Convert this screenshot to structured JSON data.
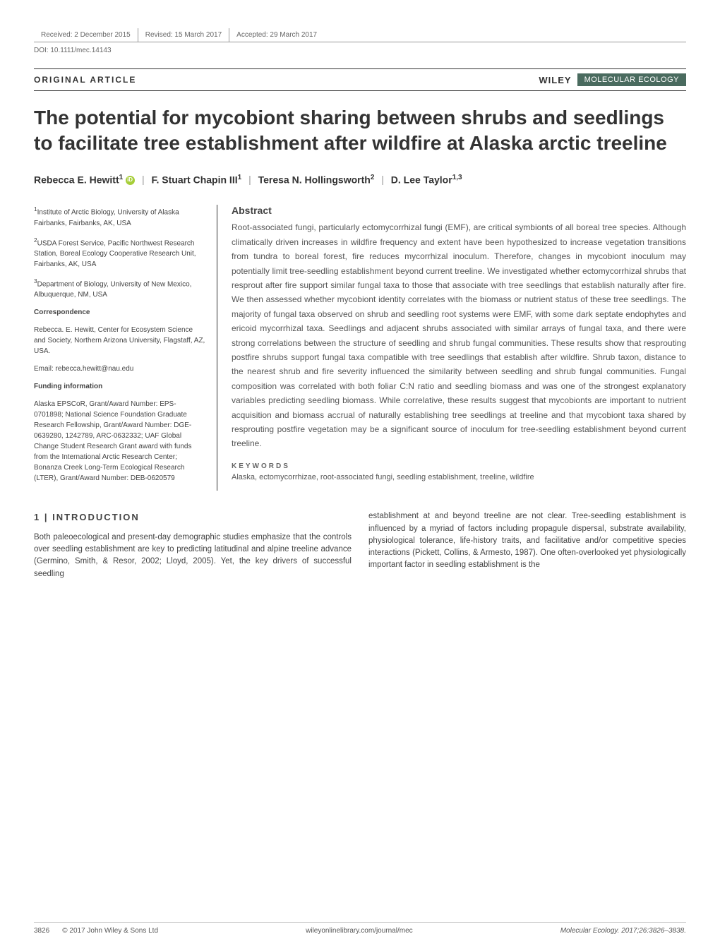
{
  "header": {
    "received": "Received: 2 December 2015",
    "revised": "Revised: 15 March 2017",
    "accepted": "Accepted: 29 March 2017",
    "doi": "DOI: 10.1111/mec.14143"
  },
  "articleType": "ORIGINAL ARTICLE",
  "publisher": "WILEY",
  "journalName": "MOLECULAR ECOLOGY",
  "title": "The potential for mycobiont sharing between shrubs and seedlings to facilitate tree establishment after wildfire at Alaska arctic treeline",
  "authors": {
    "a1": "Rebecca E. Hewitt",
    "a1_sup": "1",
    "a2": "F. Stuart Chapin III",
    "a2_sup": "1",
    "a3": "Teresa N. Hollingsworth",
    "a3_sup": "2",
    "a4": "D. Lee Taylor",
    "a4_sup": "1,3"
  },
  "affiliations": {
    "af1_sup": "1",
    "af1": "Institute of Arctic Biology, University of Alaska Fairbanks, Fairbanks, AK, USA",
    "af2_sup": "2",
    "af2": "USDA Forest Service, Pacific Northwest Research Station, Boreal Ecology Cooperative Research Unit, Fairbanks, AK, USA",
    "af3_sup": "3",
    "af3": "Department of Biology, University of New Mexico, Albuquerque, NM, USA"
  },
  "correspondence": {
    "head": "Correspondence",
    "text": "Rebecca. E. Hewitt, Center for Ecosystem Science and Society, Northern Arizona University, Flagstaff, AZ, USA.",
    "email": "Email: rebecca.hewitt@nau.edu"
  },
  "funding": {
    "head": "Funding information",
    "text": "Alaska EPSCoR, Grant/Award Number: EPS-0701898; National Science Foundation Graduate Research Fellowship, Grant/Award Number: DGE-0639280, 1242789, ARC-0632332; UAF Global Change Student Research Grant award with funds from the International Arctic Research Center; Bonanza Creek Long-Term Ecological Research (LTER), Grant/Award Number: DEB-0620579"
  },
  "abstract": {
    "head": "Abstract",
    "text": "Root-associated fungi, particularly ectomycorrhizal fungi (EMF), are critical symbionts of all boreal tree species. Although climatically driven increases in wildfire frequency and extent have been hypothesized to increase vegetation transitions from tundra to boreal forest, fire reduces mycorrhizal inoculum. Therefore, changes in mycobiont inoculum may potentially limit tree-seedling establishment beyond current treeline. We investigated whether ectomycorrhizal shrubs that resprout after fire support similar fungal taxa to those that associate with tree seedlings that establish naturally after fire. We then assessed whether mycobiont identity correlates with the biomass or nutrient status of these tree seedlings. The majority of fungal taxa observed on shrub and seedling root systems were EMF, with some dark septate endophytes and ericoid mycorrhizal taxa. Seedlings and adjacent shrubs associated with similar arrays of fungal taxa, and there were strong correlations between the structure of seedling and shrub fungal communities. These results show that resprouting postfire shrubs support fungal taxa compatible with tree seedlings that establish after wildfire. Shrub taxon, distance to the nearest shrub and fire severity influenced the similarity between seedling and shrub fungal communities. Fungal composition was correlated with both foliar C:N ratio and seedling biomass and was one of the strongest explanatory variables predicting seedling biomass. While correlative, these results suggest that mycobionts are important to nutrient acquisition and biomass accrual of naturally establishing tree seedlings at treeline and that mycobiont taxa shared by resprouting postfire vegetation may be a significant source of inoculum for tree-seedling establishment beyond current treeline."
  },
  "keywords": {
    "head": "KEYWORDS",
    "text": "Alaska, ectomycorrhizae, root-associated fungi, seedling establishment, treeline, wildfire"
  },
  "intro": {
    "head": "1  |  INTRODUCTION",
    "col1": "Both paleoecological and present-day demographic studies emphasize that the controls over seedling establishment are key to predicting latitudinal and alpine treeline advance (Germino, Smith, & Resor, 2002; Lloyd, 2005). Yet, the key drivers of successful seedling",
    "col2": "establishment at and beyond treeline are not clear. Tree-seedling establishment is influenced by a myriad of factors including propagule dispersal, substrate availability, physiological tolerance, life-history traits, and facilitative and/or competitive species interactions (Pickett, Collins, & Armesto, 1987). One often-overlooked yet physiologically important factor in seedling establishment is the"
  },
  "footer": {
    "page": "3826",
    "copyright": "© 2017 John Wiley & Sons Ltd",
    "url": "wileyonlinelibrary.com/journal/mec",
    "citation": "Molecular Ecology. 2017;26:3826–3838."
  },
  "colors": {
    "journal_bg": "#4a6b5f",
    "orcid": "#a6ce39",
    "text_main": "#333333",
    "text_body": "#555555"
  }
}
